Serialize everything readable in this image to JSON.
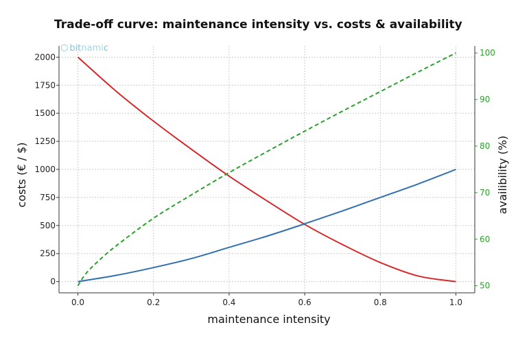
{
  "title": "Trade-off curve: maintenance intensity vs. costs & availability",
  "watermark": {
    "part1": "bit",
    "part2": "nami",
    "part3": "c",
    "icon": "hexagon-logo-icon"
  },
  "chart_data": {
    "type": "line",
    "xlabel": "maintenance intensity",
    "ylabel_left": "costs (€ / $)",
    "ylabel_right": "availibility (%)",
    "xlim": [
      -0.05,
      1.05
    ],
    "ylim_left": [
      -100,
      2100
    ],
    "ylim_right": [
      48.48,
      101.5
    ],
    "x_ticks": [
      "0.0",
      "0.2",
      "0.4",
      "0.6",
      "0.8",
      "1.0"
    ],
    "x_tick_values": [
      0,
      0.2,
      0.4,
      0.6,
      0.8,
      1.0
    ],
    "y_left_ticks": [
      0,
      250,
      500,
      750,
      1000,
      1250,
      1500,
      1750,
      2000
    ],
    "y_right_ticks": [
      50,
      60,
      70,
      80,
      90,
      100
    ],
    "grid": true,
    "series": [
      {
        "axis": "left",
        "color": "#d62728",
        "style": "solid",
        "x": [
          0,
          0.1,
          0.2,
          0.3,
          0.4,
          0.5,
          0.6,
          0.7,
          0.8,
          0.9,
          1.0
        ],
        "y": [
          2000,
          1700,
          1430,
          1180,
          940,
          720,
          510,
          330,
          170,
          50,
          0
        ]
      },
      {
        "axis": "left",
        "color": "#2f6fb0",
        "style": "solid",
        "x": [
          0,
          0.1,
          0.2,
          0.3,
          0.4,
          0.5,
          0.6,
          0.7,
          0.8,
          0.9,
          1.0
        ],
        "y": [
          0,
          55,
          125,
          205,
          305,
          405,
          515,
          630,
          750,
          870,
          1000
        ]
      },
      {
        "axis": "right",
        "color": "#2ca02c",
        "style": "dashed",
        "x": [
          0,
          0.02,
          0.05,
          0.1,
          0.2,
          0.3,
          0.4,
          0.5,
          0.6,
          0.7,
          0.8,
          0.9,
          1.0
        ],
        "y": [
          50,
          52.5,
          55,
          58.5,
          64.5,
          69.5,
          74.3,
          78.8,
          83.2,
          87.5,
          91.7,
          95.9,
          100
        ]
      }
    ]
  }
}
